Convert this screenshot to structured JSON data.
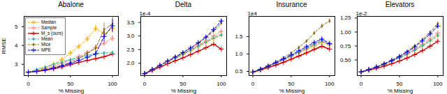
{
  "chart_data": [
    {
      "type": "line",
      "title": "Abalone",
      "xlabel": "% Missing",
      "ylabel": "RMSE",
      "x": [
        0,
        10,
        20,
        30,
        40,
        50,
        60,
        70,
        80,
        90,
        100
      ],
      "xlim": [
        -5,
        107
      ],
      "xticks": [
        0,
        50,
        100
      ],
      "ylim": [
        2.4,
        5.55
      ],
      "yticks": [
        3,
        4,
        5
      ],
      "grid": false,
      "legend": "upper left",
      "series": [
        {
          "name": "Median",
          "color": "#FFA500",
          "marker": "plus",
          "line_style": "dashed",
          "values": [
            2.58,
            2.68,
            2.82,
            3.0,
            3.25,
            3.6,
            3.95,
            4.35,
            4.9,
            4.62,
            4.92
          ],
          "yerr": [
            0.03,
            0.04,
            0.05,
            0.06,
            0.07,
            0.09,
            0.11,
            0.14,
            0.18,
            0.22,
            0.25
          ]
        },
        {
          "name": "Sample",
          "color": "#FF8080",
          "marker": "plus",
          "line_style": "dashed",
          "values": [
            2.58,
            2.65,
            2.75,
            2.9,
            3.05,
            3.22,
            3.42,
            3.62,
            3.88,
            4.12,
            4.38
          ],
          "yerr": [
            0.02,
            0.03,
            0.04,
            0.05,
            0.06,
            0.07,
            0.08,
            0.1,
            0.12,
            0.14,
            0.16
          ]
        },
        {
          "name": "M_s (ours)",
          "color": "#CC0000",
          "marker": "plus",
          "line_style": "solid",
          "values": [
            2.58,
            2.62,
            2.68,
            2.76,
            2.86,
            2.98,
            3.1,
            3.2,
            3.3,
            3.4,
            3.55
          ],
          "yerr": [
            0.01,
            0.02,
            0.02,
            0.02,
            0.03,
            0.03,
            0.04,
            0.04,
            0.05,
            0.06,
            0.07
          ]
        },
        {
          "name": "Mean",
          "color": "#20B2AA",
          "marker": "diamond",
          "line_style": "dashed",
          "values": [
            2.58,
            2.72,
            2.85,
            3.0,
            3.12,
            3.25,
            3.35,
            3.48,
            3.57,
            3.6,
            3.62
          ],
          "yerr": [
            0.02,
            0.03,
            0.03,
            0.04,
            0.05,
            0.05,
            0.06,
            0.07,
            0.07,
            0.08,
            0.08
          ]
        },
        {
          "name": "Mice",
          "color": "#8B6914",
          "marker": "diamond",
          "line_style": "dashed",
          "values": [
            2.58,
            2.64,
            2.72,
            2.82,
            2.94,
            3.1,
            3.3,
            3.58,
            3.85,
            4.85,
            5.15
          ],
          "yerr": [
            0.02,
            0.03,
            0.03,
            0.04,
            0.05,
            0.07,
            0.09,
            0.13,
            0.18,
            0.35,
            0.4
          ]
        },
        {
          "name": "MPE",
          "color": "#0000EE",
          "marker": "plus",
          "line_style": "dashed",
          "values": [
            2.58,
            2.62,
            2.7,
            2.8,
            2.92,
            3.05,
            3.2,
            3.38,
            3.55,
            4.48,
            5.05
          ],
          "yerr": [
            0.02,
            0.02,
            0.03,
            0.04,
            0.05,
            0.06,
            0.08,
            0.11,
            0.14,
            0.28,
            0.35
          ]
        }
      ]
    },
    {
      "type": "line",
      "title": "Delta",
      "xlabel": "% Missing",
      "annotation": "1e-4",
      "x": [
        0,
        10,
        20,
        30,
        40,
        50,
        60,
        70,
        80,
        90,
        100
      ],
      "xlim": [
        -5,
        107
      ],
      "xticks": [
        0,
        50,
        100
      ],
      "ylim": [
        1.55,
        3.72
      ],
      "yticks": [
        {
          "value": 2,
          "label": "2.0"
        },
        2.5,
        {
          "value": 3,
          "label": "3.0"
        },
        3.5
      ],
      "grid": false,
      "series": [
        {
          "name": "Median",
          "color": "#FFA500",
          "marker": "plus",
          "line_style": "dashed",
          "values": [
            1.62,
            1.77,
            1.92,
            2.06,
            2.19,
            2.32,
            2.46,
            2.61,
            2.76,
            2.9,
            3.04
          ],
          "yerr": [
            0.008,
            0.01,
            0.012,
            0.014,
            0.016,
            0.018,
            0.02,
            0.023,
            0.026,
            0.03,
            0.034
          ]
        },
        {
          "name": "Sample",
          "color": "#FF8080",
          "marker": "plus",
          "line_style": "dashed",
          "values": [
            1.62,
            1.77,
            1.92,
            2.07,
            2.21,
            2.35,
            2.5,
            2.66,
            2.82,
            3.0,
            3.17
          ],
          "yerr": [
            0.008,
            0.01,
            0.012,
            0.014,
            0.016,
            0.019,
            0.022,
            0.026,
            0.03,
            0.035,
            0.04
          ]
        },
        {
          "name": "M_s (ours)",
          "color": "#CC0000",
          "marker": "plus",
          "line_style": "solid",
          "values": [
            1.62,
            1.74,
            1.86,
            1.98,
            2.09,
            2.2,
            2.32,
            2.44,
            2.57,
            2.7,
            2.52
          ],
          "yerr": [
            0.006,
            0.008,
            0.009,
            0.01,
            0.012,
            0.013,
            0.015,
            0.017,
            0.019,
            0.022,
            0.025
          ]
        },
        {
          "name": "Mean",
          "color": "#20B2AA",
          "marker": "diamond",
          "line_style": "dashed",
          "values": [
            1.62,
            1.77,
            1.92,
            2.06,
            2.19,
            2.33,
            2.47,
            2.62,
            2.78,
            2.93,
            3.04
          ],
          "yerr": [
            0.008,
            0.01,
            0.012,
            0.014,
            0.016,
            0.018,
            0.021,
            0.024,
            0.027,
            0.031,
            0.035
          ]
        },
        {
          "name": "Mice",
          "color": "#8B6914",
          "marker": "diamond",
          "line_style": "dashed",
          "values": [
            1.62,
            1.77,
            1.92,
            2.08,
            2.23,
            2.39,
            2.56,
            2.74,
            2.94,
            3.18,
            3.47
          ],
          "yerr": [
            0.008,
            0.01,
            0.012,
            0.015,
            0.018,
            0.021,
            0.025,
            0.029,
            0.034,
            0.04,
            0.048
          ]
        },
        {
          "name": "MPE",
          "color": "#0000EE",
          "marker": "plus",
          "line_style": "dashed",
          "values": [
            1.62,
            1.77,
            1.92,
            2.08,
            2.23,
            2.39,
            2.56,
            2.75,
            2.96,
            3.24,
            3.55
          ],
          "yerr": [
            0.008,
            0.01,
            0.012,
            0.015,
            0.018,
            0.021,
            0.025,
            0.03,
            0.036,
            0.043,
            0.052
          ]
        }
      ]
    },
    {
      "type": "line",
      "title": "Insurance",
      "xlabel": "% Missing",
      "annotation": "1e4",
      "x": [
        0,
        10,
        20,
        30,
        40,
        50,
        60,
        70,
        80,
        90,
        100
      ],
      "xlim": [
        -5,
        107
      ],
      "xticks": [
        0,
        50,
        100
      ],
      "ylim": [
        0.38,
        2.08
      ],
      "yticks": [
        0.5,
        {
          "value": 1,
          "label": "1.0"
        },
        1.5
      ],
      "grid": false,
      "series": [
        {
          "name": "Median",
          "color": "#FFA500",
          "marker": "plus",
          "line_style": "dashed",
          "values": [
            0.48,
            0.56,
            0.64,
            0.73,
            0.83,
            0.93,
            1.03,
            1.13,
            1.23,
            1.33,
            1.26
          ],
          "yerr": [
            0.008,
            0.01,
            0.012,
            0.014,
            0.016,
            0.019,
            0.022,
            0.025,
            0.028,
            0.032,
            0.036
          ]
        },
        {
          "name": "Sample",
          "color": "#FF8080",
          "marker": "plus",
          "line_style": "dashed",
          "values": [
            0.48,
            0.56,
            0.65,
            0.74,
            0.84,
            0.95,
            1.06,
            1.17,
            1.28,
            1.39,
            1.28
          ],
          "yerr": [
            0.008,
            0.01,
            0.012,
            0.015,
            0.017,
            0.02,
            0.023,
            0.027,
            0.031,
            0.036,
            0.04
          ]
        },
        {
          "name": "M_s (ours)",
          "color": "#CC0000",
          "marker": "plus",
          "line_style": "solid",
          "values": [
            0.48,
            0.54,
            0.61,
            0.68,
            0.76,
            0.85,
            0.94,
            1.03,
            1.13,
            1.22,
            1.14
          ],
          "yerr": [
            0.006,
            0.008,
            0.009,
            0.011,
            0.013,
            0.015,
            0.017,
            0.02,
            0.022,
            0.025,
            0.028
          ]
        },
        {
          "name": "Mean",
          "color": "#20B2AA",
          "marker": "diamond",
          "line_style": "dashed",
          "values": [
            0.48,
            0.56,
            0.65,
            0.74,
            0.84,
            0.95,
            1.05,
            1.16,
            1.27,
            1.37,
            1.27
          ],
          "yerr": [
            0.008,
            0.01,
            0.012,
            0.014,
            0.017,
            0.02,
            0.023,
            0.026,
            0.03,
            0.034,
            0.038
          ]
        },
        {
          "name": "Mice",
          "color": "#8B6914",
          "marker": "diamond",
          "line_style": "dashed",
          "values": [
            0.48,
            0.57,
            0.66,
            0.77,
            0.89,
            1.03,
            1.19,
            1.37,
            1.6,
            1.8,
            1.95
          ],
          "yerr": [
            0.008,
            0.01,
            0.013,
            0.016,
            0.02,
            0.025,
            0.031,
            0.038,
            0.048,
            0.058,
            0.068
          ]
        },
        {
          "name": "MPE",
          "color": "#0000EE",
          "marker": "plus",
          "line_style": "dashed",
          "values": [
            0.48,
            0.56,
            0.65,
            0.75,
            0.86,
            0.97,
            1.09,
            1.21,
            1.33,
            1.43,
            1.3
          ],
          "yerr": [
            0.008,
            0.01,
            0.012,
            0.015,
            0.018,
            0.021,
            0.025,
            0.029,
            0.034,
            0.039,
            0.044
          ]
        }
      ]
    },
    {
      "type": "line",
      "title": "Elevators",
      "xlabel": "% Missing",
      "annotation": "1e-2",
      "x": [
        0,
        10,
        20,
        30,
        40,
        50,
        60,
        70,
        80,
        90,
        100
      ],
      "xlim": [
        -5,
        107
      ],
      "xticks": [
        0,
        50,
        100
      ],
      "ylim": [
        0.22,
        1.28
      ],
      "yticks": [
        {
          "value": 0.5,
          "label": "0.50"
        },
        0.75,
        {
          "value": 1,
          "label": "1.00"
        },
        1.25
      ],
      "grid": false,
      "series": [
        {
          "name": "Median",
          "color": "#FFA500",
          "marker": "plus",
          "line_style": "dashed",
          "values": [
            0.285,
            0.325,
            0.37,
            0.42,
            0.475,
            0.535,
            0.6,
            0.672,
            0.752,
            0.84,
            0.935
          ],
          "yerr": [
            0.004,
            0.005,
            0.006,
            0.007,
            0.008,
            0.009,
            0.011,
            0.013,
            0.015,
            0.017,
            0.02
          ]
        },
        {
          "name": "Sample",
          "color": "#FF8080",
          "marker": "plus",
          "line_style": "dashed",
          "values": [
            0.285,
            0.325,
            0.372,
            0.423,
            0.48,
            0.543,
            0.613,
            0.691,
            0.778,
            0.874,
            0.98
          ],
          "yerr": [
            0.004,
            0.005,
            0.006,
            0.008,
            0.009,
            0.011,
            0.013,
            0.016,
            0.019,
            0.022,
            0.026
          ]
        },
        {
          "name": "M_s (ours)",
          "color": "#CC0000",
          "marker": "plus",
          "line_style": "solid",
          "values": [
            0.285,
            0.316,
            0.35,
            0.388,
            0.431,
            0.48,
            0.534,
            0.596,
            0.666,
            0.745,
            0.834
          ],
          "yerr": [
            0.003,
            0.004,
            0.005,
            0.006,
            0.007,
            0.008,
            0.01,
            0.012,
            0.014,
            0.016,
            0.019
          ]
        },
        {
          "name": "Mean",
          "color": "#20B2AA",
          "marker": "diamond",
          "line_style": "dashed",
          "values": [
            0.285,
            0.325,
            0.37,
            0.42,
            0.476,
            0.537,
            0.603,
            0.676,
            0.756,
            0.844,
            0.94
          ],
          "yerr": [
            0.004,
            0.005,
            0.006,
            0.007,
            0.009,
            0.01,
            0.012,
            0.014,
            0.017,
            0.02,
            0.023
          ]
        },
        {
          "name": "Mice",
          "color": "#8B6914",
          "marker": "diamond",
          "line_style": "dashed",
          "values": [
            0.285,
            0.328,
            0.376,
            0.432,
            0.496,
            0.569,
            0.653,
            0.751,
            0.864,
            0.996,
            1.148
          ],
          "yerr": [
            0.004,
            0.005,
            0.007,
            0.009,
            0.011,
            0.013,
            0.016,
            0.02,
            0.024,
            0.029,
            0.035
          ]
        },
        {
          "name": "MPE",
          "color": "#0000EE",
          "marker": "plus",
          "line_style": "dashed",
          "values": [
            0.285,
            0.327,
            0.374,
            0.428,
            0.49,
            0.56,
            0.64,
            0.733,
            0.84,
            0.963,
            1.106
          ],
          "yerr": [
            0.004,
            0.005,
            0.007,
            0.008,
            0.01,
            0.013,
            0.015,
            0.019,
            0.023,
            0.028,
            0.034
          ]
        }
      ]
    }
  ]
}
